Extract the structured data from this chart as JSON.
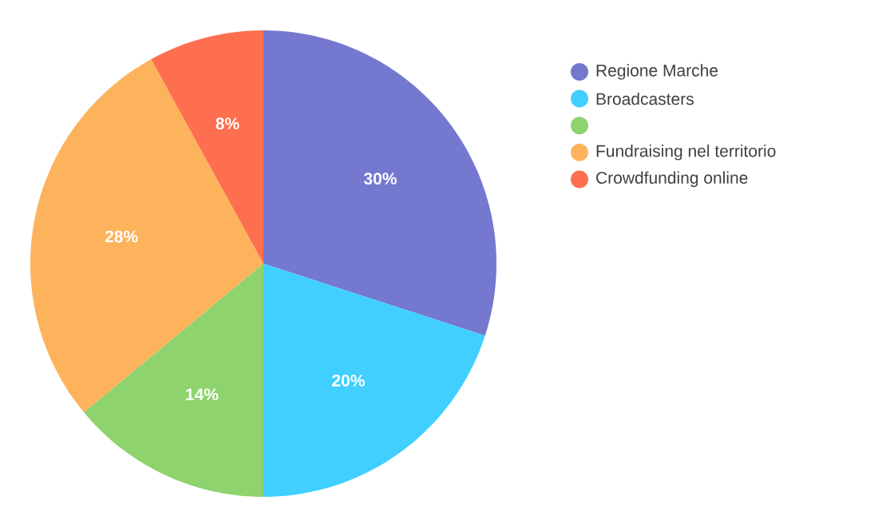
{
  "chart_data": {
    "type": "pie",
    "categories": [
      "Regione Marche",
      "Broadcasters",
      null,
      "Fundraising nel territorio",
      "Crowdfunding online"
    ],
    "values": [
      30,
      20,
      14,
      28,
      8
    ],
    "value_labels": [
      "30%",
      "20%",
      "14%",
      "28%",
      "8%"
    ],
    "colors": [
      "#7478cf",
      "#40cfff",
      "#8ed36e",
      "#fdb35c",
      "#fd6f4f"
    ],
    "legend": "right"
  }
}
